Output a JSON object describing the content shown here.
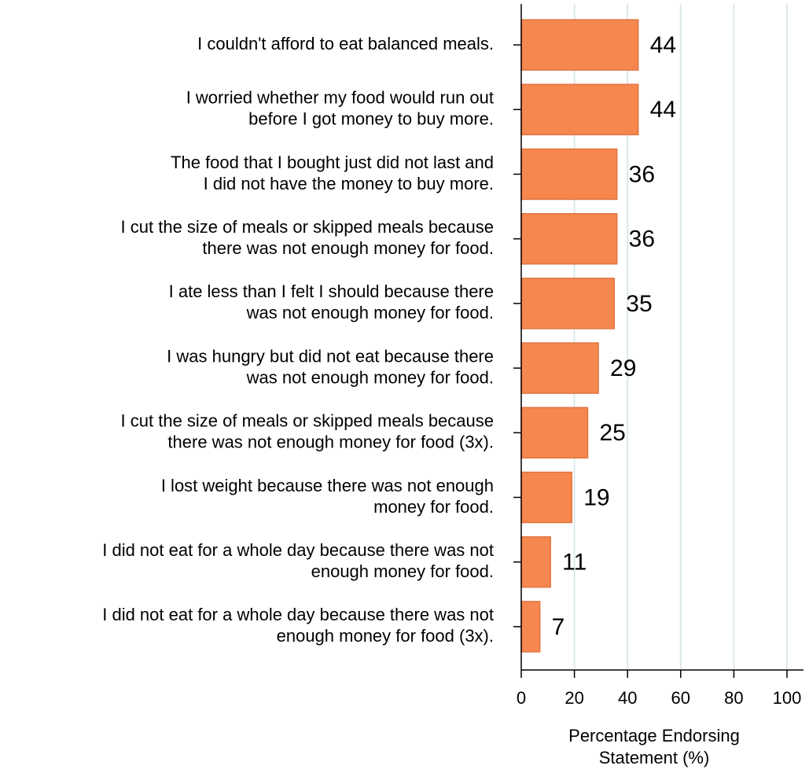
{
  "chart_data": {
    "type": "bar",
    "orientation": "horizontal",
    "categories": [
      [
        "I couldn't afford to eat balanced meals."
      ],
      [
        "I worried whether my food would run out",
        "before I got money to buy more."
      ],
      [
        "The food that I bought just did not last and",
        "I did not have the money to buy more."
      ],
      [
        "I cut the size of meals or skipped meals because",
        "there was not enough money for food."
      ],
      [
        "I ate less than I felt I should because there",
        "was not enough money for food."
      ],
      [
        "I was hungry but did not eat because there",
        "was not enough money for food."
      ],
      [
        "I cut the size of meals or skipped meals because",
        "there was not enough money for food (3x)."
      ],
      [
        "I lost weight because there was not enough",
        "money for food."
      ],
      [
        "I did not eat for a whole day because there was not",
        "enough money for food."
      ],
      [
        "I did not eat for a whole day because there was not",
        "enough money for food (3x)."
      ]
    ],
    "values": [
      44,
      44,
      36,
      36,
      35,
      29,
      25,
      19,
      11,
      7
    ],
    "color": "#f5874f",
    "xlabel": [
      "Percentage Endorsing",
      "Statement (%)"
    ],
    "xlim": [
      0,
      100
    ],
    "xticks": [
      0,
      20,
      40,
      60,
      80,
      100
    ],
    "grid": true
  }
}
